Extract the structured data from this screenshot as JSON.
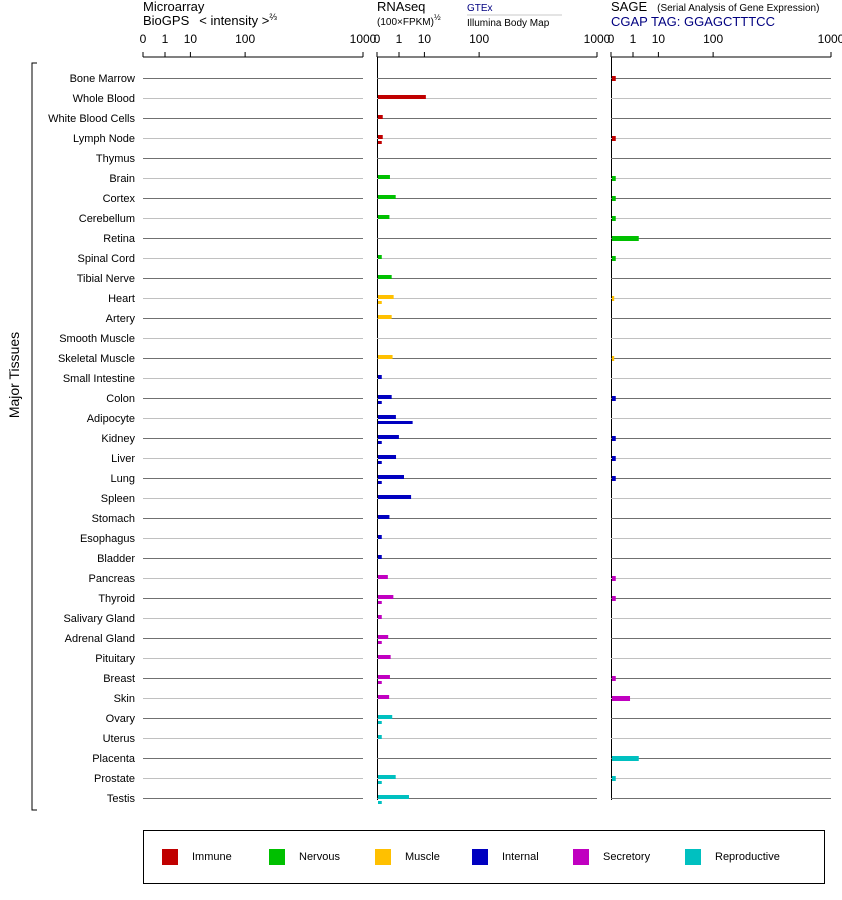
{
  "panels": {
    "microarray": {
      "title_line1": "Microarray",
      "title_line2": "BioGPS",
      "title_suffix": "< intensity >",
      "title_exponent": "⅔"
    },
    "rnaseq": {
      "title_line1": "RNAseq",
      "title_line2": "(100×FPKM)",
      "title_exponent": "½",
      "source_primary": "GTEx",
      "source_secondary": "Illumina Body Map"
    },
    "sage": {
      "title_line1": "SAGE",
      "title_note": "(Serial Analysis of Gene Expression)",
      "tag_line": "CGAP TAG: GGAGCTTTCC"
    }
  },
  "y_group_label": "Major Tissues",
  "colors": {
    "immune": "#c00000",
    "nervous": "#00c000",
    "muscle": "#ffc000",
    "internal": "#0000c0",
    "secretory": "#c000c0",
    "reproductive": "#00c0c0"
  },
  "legend": [
    {
      "key": "immune",
      "label": "Immune"
    },
    {
      "key": "nervous",
      "label": "Nervous"
    },
    {
      "key": "muscle",
      "label": "Muscle"
    },
    {
      "key": "internal",
      "label": "Internal"
    },
    {
      "key": "secretory",
      "label": "Secretory"
    },
    {
      "key": "reproductive",
      "label": "Reproductive"
    }
  ],
  "chart_data": {
    "type": "bar",
    "orientation": "horizontal",
    "x_scale": "power",
    "x_ticks": [
      "0",
      "1",
      "10",
      "100",
      "1000"
    ],
    "x_tick_values": [
      0,
      1,
      10,
      100,
      1000
    ],
    "xlim": [
      0,
      1000
    ],
    "categories": [
      "Bone Marrow",
      "Whole Blood",
      "White Blood Cells",
      "Lymph Node",
      "Thymus",
      "Brain",
      "Cortex",
      "Cerebellum",
      "Retina",
      "Spinal Cord",
      "Tibial Nerve",
      "Heart",
      "Artery",
      "Smooth Muscle",
      "Skeletal Muscle",
      "Small Intestine",
      "Colon",
      "Adipocyte",
      "Kidney",
      "Liver",
      "Lung",
      "Spleen",
      "Stomach",
      "Esophagus",
      "Bladder",
      "Pancreas",
      "Thyroid",
      "Salivary Gland",
      "Adrenal Gland",
      "Pituitary",
      "Breast",
      "Skin",
      "Ovary",
      "Uterus",
      "Placenta",
      "Prostate",
      "Testis"
    ],
    "groups": [
      "immune",
      "immune",
      "immune",
      "immune",
      "immune",
      "nervous",
      "nervous",
      "nervous",
      "nervous",
      "nervous",
      "nervous",
      "muscle",
      "muscle",
      "muscle",
      "muscle",
      "internal",
      "internal",
      "internal",
      "internal",
      "internal",
      "internal",
      "internal",
      "internal",
      "internal",
      "internal",
      "secretory",
      "secretory",
      "secretory",
      "secretory",
      "secretory",
      "secretory",
      "secretory",
      "reproductive",
      "reproductive",
      "reproductive",
      "reproductive",
      "reproductive"
    ],
    "series": [
      {
        "name": "GTEx",
        "panel": "rnaseq",
        "values": [
          null,
          10.3,
          0.01,
          0.01,
          null,
          0.16,
          0.52,
          0.14,
          null,
          0.005,
          0.24,
          0.36,
          0.24,
          null,
          0.29,
          0.005,
          0.24,
          0.54,
          0.86,
          0.55,
          1.65,
          3.4,
          0.14,
          0.005,
          0.005,
          0.09,
          0.34,
          0.005,
          0.1,
          0.19,
          0.16,
          0.13,
          0.27,
          0.005,
          null,
          0.52,
          2.8
        ]
      },
      {
        "name": "Illumina Body Map",
        "panel": "rnaseq",
        "values": [
          null,
          null,
          null,
          0.005,
          null,
          null,
          null,
          null,
          null,
          null,
          null,
          0.005,
          null,
          null,
          null,
          null,
          0.005,
          3.9,
          0.005,
          0.005,
          0.005,
          null,
          null,
          null,
          null,
          null,
          0.005,
          null,
          0.005,
          null,
          0.005,
          null,
          0.005,
          null,
          null,
          0.005,
          0.005
        ]
      },
      {
        "name": "CGAP TAG: GGAGCTTTCC",
        "panel": "sage",
        "values": [
          0.005,
          null,
          null,
          0.005,
          null,
          0.005,
          0.005,
          0.005,
          1.8,
          0.005,
          null,
          0.001,
          null,
          null,
          0.001,
          null,
          0.005,
          null,
          0.005,
          0.005,
          0.005,
          null,
          null,
          null,
          null,
          0.005,
          0.005,
          null,
          null,
          null,
          0.005,
          0.55,
          null,
          null,
          1.8,
          0.005,
          null
        ]
      },
      {
        "name": "BioGPS",
        "panel": "microarray",
        "values": [
          null,
          null,
          null,
          null,
          null,
          null,
          null,
          null,
          null,
          null,
          null,
          null,
          null,
          null,
          null,
          null,
          null,
          null,
          null,
          null,
          null,
          null,
          null,
          null,
          null,
          null,
          null,
          null,
          null,
          null,
          null,
          null,
          null,
          null,
          null,
          null,
          null
        ]
      }
    ]
  }
}
